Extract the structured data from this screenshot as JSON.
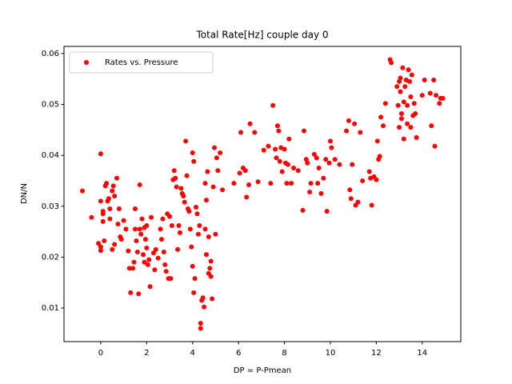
{
  "chart_data": {
    "type": "scatter",
    "title": "Total Rate[Hz] couple day 0",
    "xlabel": "DP = P-Pmean",
    "ylabel": "DN/N",
    "legend_loc": "upper left",
    "xlim": [
      -1.6,
      15.68
    ],
    "ylim": [
      0.0034,
      0.0614
    ],
    "xticks": [
      0,
      2,
      4,
      6,
      8,
      10,
      12,
      14
    ],
    "yticks": [
      0.01,
      0.02,
      0.03,
      0.04,
      0.05,
      0.06
    ],
    "x": [
      -0.8,
      -0.4,
      0,
      0,
      -0.1,
      0,
      0,
      0.1,
      0.1,
      0.1,
      0.15,
      0.2,
      0.25,
      0.3,
      0.35,
      0.4,
      0.4,
      0.5,
      0.55,
      0.6,
      0.5,
      0.6,
      0.7,
      0.75,
      0.8,
      0.85,
      0.9,
      1,
      1.1,
      1.2,
      1.25,
      1.3,
      1.4,
      1.45,
      1.5,
      1.5,
      1.55,
      1.6,
      1.65,
      1.7,
      1.7,
      1.75,
      1.8,
      1.85,
      1.9,
      1.9,
      1.95,
      2.0,
      2.0,
      2.05,
      2.1,
      2.15,
      2.2,
      2.3,
      2.35,
      2.4,
      2.5,
      2.6,
      2.65,
      2.7,
      2.75,
      2.8,
      2.85,
      2.9,
      2.95,
      3.0,
      3.05,
      3.1,
      3.15,
      3.2,
      3.25,
      3.3,
      3.35,
      3.4,
      3.45,
      3.5,
      3.55,
      3.6,
      3.65,
      3.7,
      3.75,
      3.8,
      3.85,
      3.9,
      3.95,
      4.0,
      4.05,
      4.0,
      4.05,
      4.1,
      4.15,
      4.2,
      4.25,
      4.3,
      4.35,
      4.35,
      4.4,
      4.45,
      4.5,
      4.55,
      4.6,
      4.65,
      4.7,
      4.75,
      4.8,
      4.8,
      4.85,
      4.9,
      4.95,
      5.0,
      5.05,
      5.1,
      5.2,
      5.3,
      4.55,
      4.6,
      4.7,
      5.8,
      6.05,
      6.1,
      6.2,
      6.3,
      6.35,
      6.45,
      6.5,
      6.7,
      6.85,
      7.1,
      7.3,
      7.4,
      7.5,
      7.6,
      7.65,
      7.7,
      7.75,
      7.8,
      7.85,
      7.9,
      8.0,
      8.05,
      8.1,
      8.15,
      8.2,
      8.3,
      8.4,
      8.6,
      8.8,
      8.85,
      8.95,
      9.0,
      9.1,
      9.15,
      9.3,
      9.4,
      9.45,
      9.5,
      9.6,
      9.7,
      9.8,
      9.85,
      9.95,
      10.0,
      10.05,
      10.2,
      10.4,
      10.7,
      10.8,
      10.85,
      10.9,
      10.95,
      11.05,
      11.1,
      11.2,
      11.3,
      11.4,
      11.7,
      11.75,
      11.8,
      11.9,
      12.0,
      12.05,
      12.1,
      12.15,
      12.2,
      12.3,
      12.4,
      12.6,
      12.65,
      12.9,
      12.95,
      13.0,
      13.0,
      13.05,
      13.05,
      13.1,
      13.1,
      13.15,
      13.2,
      13.2,
      13.25,
      13.3,
      13.35,
      13.35,
      13.4,
      13.45,
      13.5,
      13.5,
      13.55,
      13.6,
      13.65,
      13.7,
      13.75,
      14.0,
      14.1,
      14.35,
      14.4,
      14.5,
      14.55,
      14.6,
      14.75,
      14.8,
      14.9
    ],
    "series": [
      {
        "name": "Rates vs. Pressure",
        "color": "#ff0000",
        "values": [
          0.033,
          0.0278,
          0.0403,
          0.031,
          0.0227,
          0.0213,
          0.022,
          0.029,
          0.0285,
          0.027,
          0.0232,
          0.034,
          0.0345,
          0.031,
          0.0315,
          0.0295,
          0.0275,
          0.033,
          0.034,
          0.032,
          0.0215,
          0.0225,
          0.0355,
          0.0265,
          0.0295,
          0.024,
          0.0235,
          0.0272,
          0.0255,
          0.0212,
          0.0178,
          0.013,
          0.0178,
          0.019,
          0.0295,
          0.0255,
          0.0232,
          0.021,
          0.0128,
          0.0342,
          0.0255,
          0.0245,
          0.0275,
          0.0205,
          0.019,
          0.0258,
          0.0235,
          0.0262,
          0.0218,
          0.0185,
          0.0195,
          0.0142,
          0.0278,
          0.0208,
          0.0175,
          0.0215,
          0.0198,
          0.0255,
          0.0235,
          0.0275,
          0.021,
          0.0185,
          0.0172,
          0.0285,
          0.0158,
          0.028,
          0.0158,
          0.0262,
          0.0352,
          0.037,
          0.0355,
          0.0338,
          0.0215,
          0.0262,
          0.0248,
          0.0335,
          0.0325,
          0.032,
          0.0308,
          0.0428,
          0.036,
          0.0295,
          0.029,
          0.0255,
          0.022,
          0.0405,
          0.0388,
          0.0182,
          0.013,
          0.0158,
          0.0298,
          0.0285,
          0.0245,
          0.0262,
          0.007,
          0.006,
          0.0115,
          0.012,
          0.0102,
          0.0345,
          0.0312,
          0.0368,
          0.024,
          0.0178,
          0.0162,
          0.0192,
          0.0118,
          0.0338,
          0.0415,
          0.0245,
          0.0395,
          0.037,
          0.0405,
          0.0332,
          0.0255,
          0.0205,
          0.0168,
          0.0345,
          0.0365,
          0.0445,
          0.0375,
          0.037,
          0.0318,
          0.0342,
          0.0462,
          0.0445,
          0.0348,
          0.041,
          0.0418,
          0.0345,
          0.0498,
          0.0412,
          0.0395,
          0.0458,
          0.0448,
          0.0388,
          0.0415,
          0.0368,
          0.0412,
          0.0385,
          0.0345,
          0.0382,
          0.0432,
          0.0345,
          0.0375,
          0.037,
          0.0292,
          0.0448,
          0.0392,
          0.0385,
          0.0328,
          0.0345,
          0.0402,
          0.0395,
          0.0345,
          0.0375,
          0.0325,
          0.0355,
          0.0392,
          0.029,
          0.0385,
          0.0428,
          0.0415,
          0.0392,
          0.0382,
          0.0448,
          0.0468,
          0.0332,
          0.0315,
          0.0382,
          0.0462,
          0.0302,
          0.0308,
          0.0445,
          0.035,
          0.0368,
          0.0355,
          0.0302,
          0.0358,
          0.0352,
          0.0428,
          0.0392,
          0.0398,
          0.0475,
          0.0458,
          0.0502,
          0.0588,
          0.0582,
          0.0535,
          0.0498,
          0.0545,
          0.0455,
          0.0552,
          0.0525,
          0.0482,
          0.0472,
          0.0572,
          0.0505,
          0.0432,
          0.0535,
          0.0548,
          0.0498,
          0.0462,
          0.0568,
          0.0545,
          0.0515,
          0.0455,
          0.0558,
          0.0478,
          0.0502,
          0.0482,
          0.0435,
          0.0518,
          0.0548,
          0.0522,
          0.0458,
          0.0548,
          0.0418,
          0.0518,
          0.0502,
          0.0512,
          0.0512
        ]
      }
    ]
  }
}
